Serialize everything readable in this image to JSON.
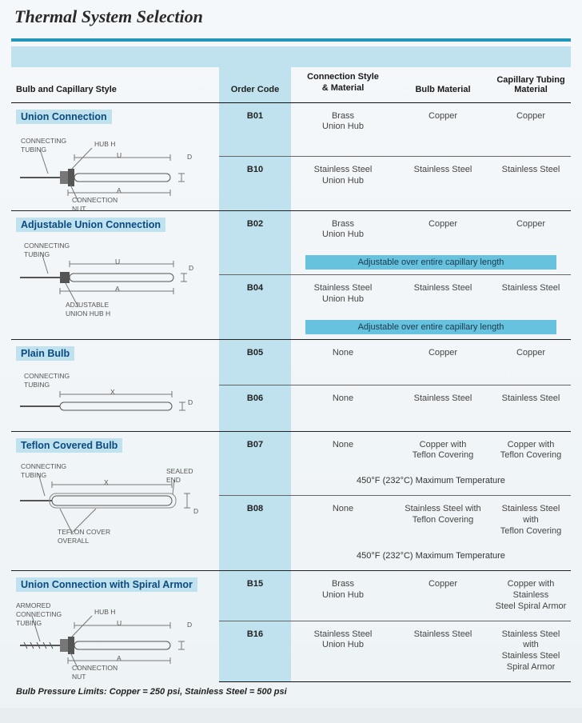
{
  "title": "Thermal System Selection",
  "columns": {
    "style": "Bulb and Capillary Style",
    "code": "Order Code",
    "conn": "Connection Style\n& Material",
    "bulb": "Bulb Material",
    "cap": "Capillary Tubing Material"
  },
  "sections": [
    {
      "heading": "Union Connection",
      "diagram_labels": {
        "tubing": "CONNECTING\nTUBING",
        "hub": "HUB H",
        "nut": "CONNECTION\nNUT",
        "U": "U",
        "A": "A",
        "D": "D"
      },
      "rows": [
        {
          "code": "B01",
          "conn": "Brass\nUnion Hub",
          "bulb": "Copper",
          "cap": "Copper"
        },
        {
          "code": "B10",
          "conn": "Stainless Steel\nUnion Hub",
          "bulb": "Stainless Steel",
          "cap": "Stainless Steel"
        }
      ]
    },
    {
      "heading": "Adjustable Union Connection",
      "diagram_labels": {
        "tubing": "CONNECTING\nTUBING",
        "hub": "ADJUSTABLE\nUNION HUB H",
        "U": "U",
        "A": "A",
        "D": "D"
      },
      "rows": [
        {
          "code": "B02",
          "conn": "Brass\nUnion Hub",
          "bulb": "Copper",
          "cap": "Copper",
          "note_bar": "Adjustable over entire capillary length"
        },
        {
          "code": "B04",
          "conn": "Stainless Steel\nUnion Hub",
          "bulb": "Stainless Steel",
          "cap": "Stainless Steel",
          "note_bar": "Adjustable over entire capillary length"
        }
      ]
    },
    {
      "heading": "Plain Bulb",
      "diagram_labels": {
        "tubing": "CONNECTING\nTUBING",
        "X": "X",
        "D": "D"
      },
      "rows": [
        {
          "code": "B05",
          "conn": "None",
          "bulb": "Copper",
          "cap": "Copper"
        },
        {
          "code": "B06",
          "conn": "None",
          "bulb": "Stainless Steel",
          "cap": "Stainless Steel"
        }
      ]
    },
    {
      "heading": "Teflon Covered Bulb",
      "diagram_labels": {
        "tubing": "CONNECTING\nTUBING",
        "sealed": "SEALED\nEND",
        "cover": "TEFLON COVER\nOVERALL",
        "X": "X",
        "D": "D"
      },
      "rows": [
        {
          "code": "B07",
          "conn": "None",
          "bulb": "Copper with\nTeflon Covering",
          "cap": "Copper with\nTeflon Covering",
          "note_plain": "450°F (232°C) Maximum Temperature"
        },
        {
          "code": "B08",
          "conn": "None",
          "bulb": "Stainless Steel with\nTeflon Covering",
          "cap": "Stainless Steel with\nTeflon Covering",
          "note_plain": "450°F (232°C) Maximum Temperature"
        }
      ]
    },
    {
      "heading": "Union Connection with Spiral Armor",
      "diagram_labels": {
        "tubing": "ARMORED\nCONNECTING\nTUBING",
        "hub": "HUB H",
        "nut": "CONNECTION\nNUT",
        "U": "U",
        "A": "A",
        "D": "D"
      },
      "rows": [
        {
          "code": "B15",
          "conn": "Brass\nUnion Hub",
          "bulb": "Copper",
          "cap": "Copper with Stainless\nSteel Spiral Armor"
        },
        {
          "code": "B16",
          "conn": "Stainless Steel\nUnion Hub",
          "bulb": "Stainless Steel",
          "cap": "Stainless Steel with\nStainless Steel Spiral Armor"
        }
      ]
    }
  ],
  "footer": "Bulb Pressure Limits: Copper = 250 psi, Stainless Steel = 500 psi",
  "colors": {
    "accent_band": "#2496bb",
    "light_band": "#bfe2ee",
    "note_bar": "#66c2de",
    "text": "#333333"
  }
}
